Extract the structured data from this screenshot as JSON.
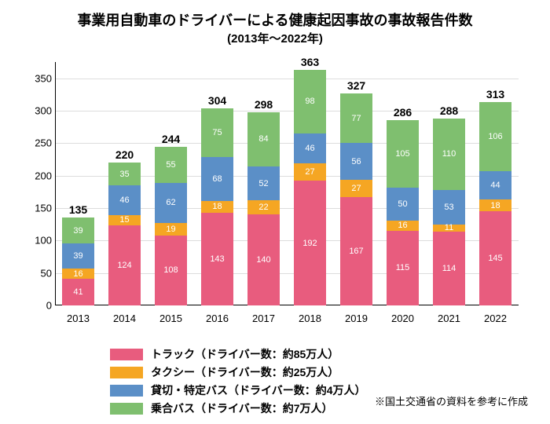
{
  "title": "事業用自動車のドライバーによる健康起因事故の事故報告件数",
  "title_fontsize": 18,
  "subtitle": "(2013年～2022年)",
  "subtitle_fontsize": 15,
  "footnote": "※国土交通省の資料を参考に作成",
  "chart": {
    "type": "stacked-bar",
    "background_color": "#ffffff",
    "grid_color": "#dddddd",
    "axis_color": "#000000",
    "ylim": [
      0,
      375
    ],
    "yticks": [
      0,
      50,
      100,
      150,
      200,
      250,
      300,
      350
    ],
    "label_fontsize": 13,
    "total_fontsize": 14,
    "segment_fontsize": 11,
    "categories": [
      "2013",
      "2014",
      "2015",
      "2016",
      "2017",
      "2018",
      "2019",
      "2020",
      "2021",
      "2022"
    ],
    "totals": [
      135,
      220,
      244,
      304,
      298,
      363,
      327,
      286,
      288,
      313
    ],
    "series": [
      {
        "key": "truck",
        "label": "トラック（ドライバー数：約85万人）",
        "color": "#e85c7e",
        "values": [
          41,
          124,
          108,
          143,
          140,
          192,
          167,
          115,
          114,
          145
        ]
      },
      {
        "key": "taxi",
        "label": "タクシー（ドライバー数：約25万人）",
        "color": "#f5a623",
        "values": [
          16,
          15,
          19,
          18,
          22,
          27,
          27,
          16,
          11,
          18
        ]
      },
      {
        "key": "charter",
        "label": "貸切・特定バス（ドライバー数：約4万人）",
        "color": "#5b8fc7",
        "values": [
          39,
          46,
          62,
          68,
          52,
          46,
          56,
          50,
          53,
          44
        ]
      },
      {
        "key": "route",
        "label": "乗合バス（ドライバー数：約7万人）",
        "color": "#7fbf6f",
        "values": [
          39,
          35,
          55,
          75,
          84,
          98,
          77,
          105,
          110,
          106
        ]
      }
    ],
    "bar_width": 0.7
  },
  "legend_swatch_w": 42,
  "legend_swatch_h": 15
}
